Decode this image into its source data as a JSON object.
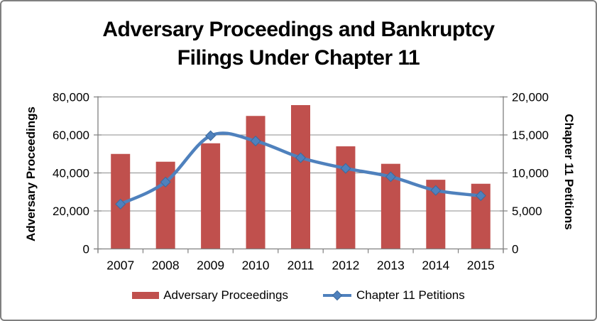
{
  "window": {
    "background": "#ffffff",
    "border_color": "#808080"
  },
  "title_lines": [
    "Adversary Proceedings and Bankruptcy",
    "Filings Under Chapter 11"
  ],
  "chart_data": {
    "type": "bar",
    "combo": "bar + line, dual y-axis",
    "title": "Adversary Proceedings and Bankruptcy Filings Under Chapter 11",
    "categories": [
      "2007",
      "2008",
      "2009",
      "2010",
      "2011",
      "2012",
      "2013",
      "2014",
      "2015"
    ],
    "series": [
      {
        "name": "Adversary Proceedings",
        "type": "bar",
        "axis": "left",
        "color": "#C0504D",
        "values": [
          50000,
          45900,
          55600,
          70000,
          75700,
          54000,
          44800,
          36400,
          34300
        ]
      },
      {
        "name": "Chapter 11 Petitions",
        "type": "line",
        "axis": "right",
        "color": "#4F81BD",
        "marker": "diamond",
        "marker_border": "#3B6A9D",
        "values": [
          5900,
          8800,
          14900,
          14200,
          12000,
          10600,
          9500,
          7700,
          7000
        ]
      }
    ],
    "left_axis": {
      "title": "Adversary Proceedings",
      "min": 0,
      "max": 80000,
      "tick_values": [
        0,
        20000,
        40000,
        60000,
        80000
      ],
      "tick_labels": [
        "0",
        "20,000",
        "40,000",
        "60,000",
        "80,000"
      ]
    },
    "right_axis": {
      "title": "Chapter 11 Petitions",
      "min": 0,
      "max": 20000,
      "tick_values": [
        0,
        5000,
        10000,
        15000,
        20000
      ],
      "tick_labels": [
        "0",
        "5,000",
        "10,000",
        "15,000",
        "20,000"
      ]
    },
    "grid": true,
    "grid_color": "#8C8C8C",
    "axis_color": "#808080",
    "text_color": "#000000",
    "legend_position": "bottom"
  }
}
